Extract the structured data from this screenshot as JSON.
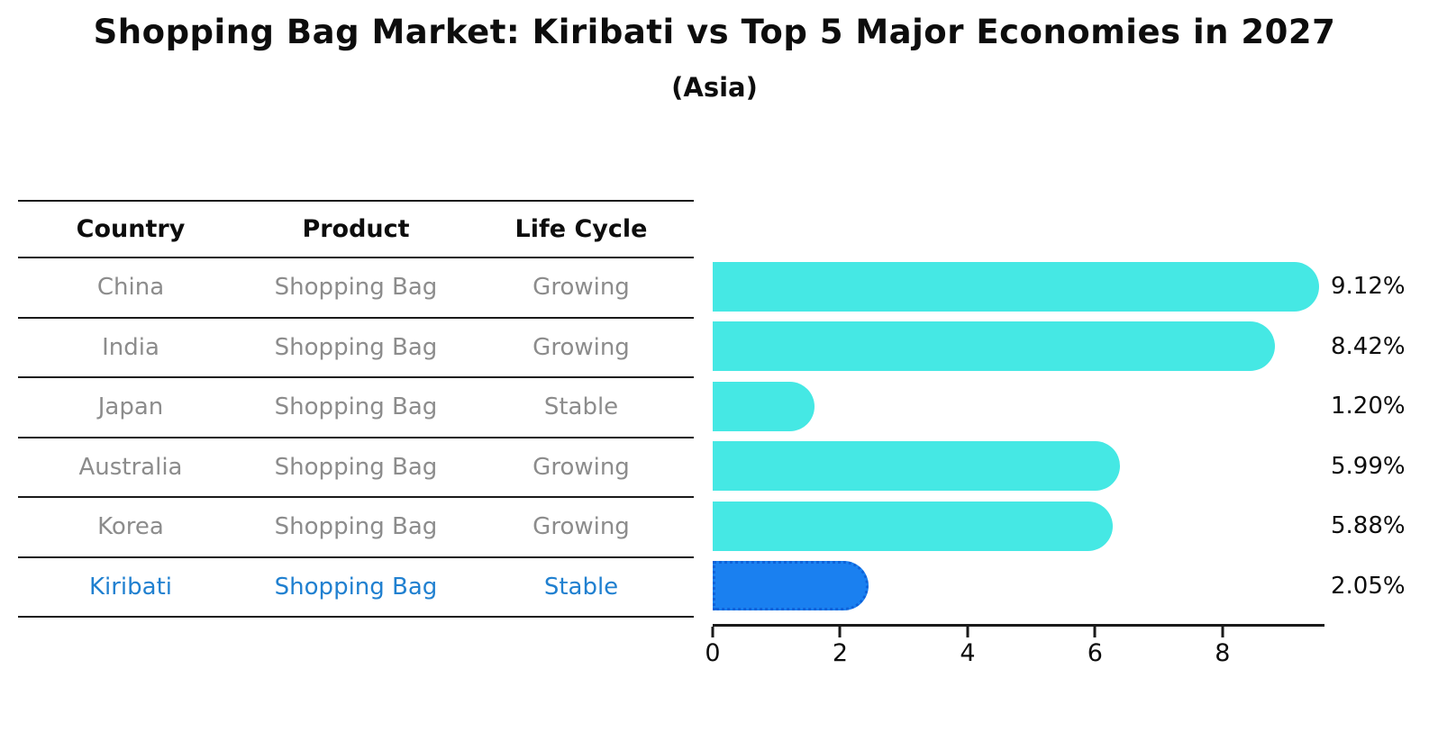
{
  "title": "Shopping Bag Market: Kiribati vs Top 5 Major Economies in 2027",
  "subtitle": "(Asia)",
  "table": {
    "headers": [
      "Country",
      "Product",
      "Life Cycle"
    ],
    "rows": [
      {
        "country": "China",
        "product": "Shopping Bag",
        "life_cycle": "Growing",
        "highlighted": false
      },
      {
        "country": "India",
        "product": "Shopping Bag",
        "life_cycle": "Growing",
        "highlighted": false
      },
      {
        "country": "Japan",
        "product": "Shopping Bag",
        "life_cycle": "Stable",
        "highlighted": false
      },
      {
        "country": "Australia",
        "product": "Shopping Bag",
        "life_cycle": "Growing",
        "highlighted": false
      },
      {
        "country": "Korea",
        "product": "Shopping Bag",
        "life_cycle": "Growing",
        "highlighted": false
      },
      {
        "country": "Kiribati",
        "product": "Shopping Bag",
        "life_cycle": "Stable",
        "highlighted": true
      }
    ]
  },
  "chart_data": {
    "type": "bar",
    "orientation": "horizontal",
    "title": "Shopping Bag Market: Kiribati vs Top 5 Major Economies in 2027",
    "subtitle": "(Asia)",
    "categories": [
      "China",
      "India",
      "Japan",
      "Australia",
      "Korea",
      "Kiribati"
    ],
    "values": [
      9.12,
      8.42,
      1.2,
      5.99,
      5.88,
      2.05
    ],
    "value_labels": [
      "9.12%",
      "8.42%",
      "1.20%",
      "5.99%",
      "5.88%",
      "2.05%"
    ],
    "x_ticks": [
      0,
      2,
      4,
      6,
      8
    ],
    "xlim": [
      0,
      9.6
    ],
    "xlabel": "",
    "ylabel": "",
    "grid": false,
    "legend": null,
    "bar_color": "#45e8e4",
    "highlight_color": "#1a80f0",
    "highlight_border_color": "#0e62d9",
    "highlight_index": 5
  },
  "colors": {
    "text": "#0d0d0d",
    "muted_text": "#8c8c8c",
    "highlight_text": "#2080d0",
    "axis": "#1a1a1a",
    "background": "#ffffff"
  }
}
